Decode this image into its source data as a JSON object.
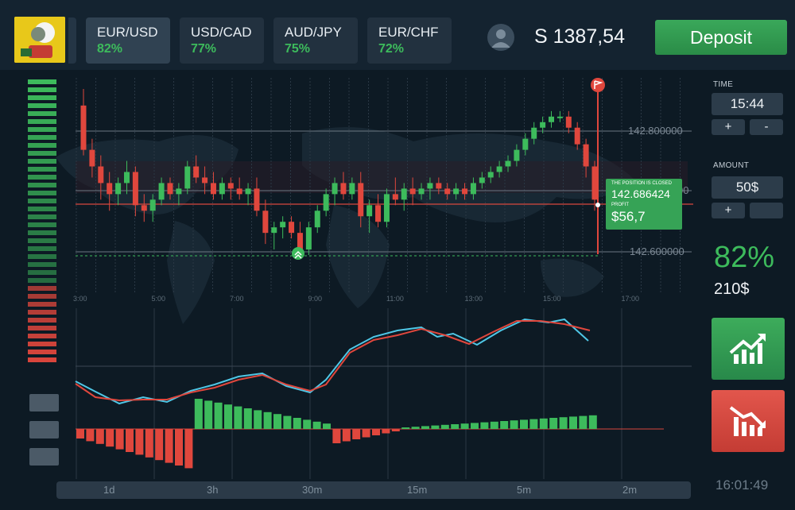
{
  "header": {
    "pairs": [
      {
        "name": "EUR/USD",
        "pct": "82%"
      },
      {
        "name": "USD/CAD",
        "pct": "77%"
      },
      {
        "name": "AUD/JPY",
        "pct": "75%"
      },
      {
        "name": "EUR/CHF",
        "pct": "72%"
      }
    ],
    "balance": "S 1387,54",
    "deposit_label": "Deposit"
  },
  "side": {
    "time_label": "TIME",
    "time_value": "15:44",
    "amount_label": "AMOUNT",
    "amount_value": "50$",
    "plus": "+",
    "minus": "-",
    "payout": "82%",
    "payout_amount": "210$"
  },
  "clock": "16:01:49",
  "timeframes": [
    "1d",
    "3h",
    "30m",
    "15m",
    "5m",
    "2m"
  ],
  "closed_box": {
    "title": "THE POSITION IS CLOSED",
    "price": "142.686424",
    "profit_label": "PROFIT",
    "profit": "$56,7"
  },
  "colors": {
    "up": "#3dbb5c",
    "down": "#e0473d",
    "bg": "#0d1a24"
  },
  "chart_data": {
    "type": "candlestick",
    "price_labels": [
      "142.800000",
      "00",
      "142.600000"
    ],
    "time_labels": [
      "3:00",
      "5:00",
      "7:00",
      "9:00",
      "11:00",
      "13:00",
      "15:00",
      "17:00"
    ],
    "candles_ohlc": [
      [
        142.83,
        142.86,
        142.74,
        142.75
      ],
      [
        142.75,
        142.77,
        142.7,
        142.72
      ],
      [
        142.72,
        142.74,
        142.66,
        142.69
      ],
      [
        142.69,
        142.71,
        142.64,
        142.67
      ],
      [
        142.67,
        142.7,
        142.65,
        142.69
      ],
      [
        142.69,
        142.73,
        142.67,
        142.71
      ],
      [
        142.71,
        142.72,
        142.63,
        142.65
      ],
      [
        142.65,
        142.67,
        142.62,
        142.64
      ],
      [
        142.64,
        142.67,
        142.62,
        142.66
      ],
      [
        142.66,
        142.7,
        142.65,
        142.69
      ],
      [
        142.69,
        142.7,
        142.66,
        142.67
      ],
      [
        142.67,
        142.69,
        142.65,
        142.68
      ],
      [
        142.68,
        142.73,
        142.67,
        142.72
      ],
      [
        142.72,
        142.74,
        142.69,
        142.7
      ],
      [
        142.7,
        142.72,
        142.67,
        142.69
      ],
      [
        142.69,
        142.71,
        142.66,
        142.67
      ],
      [
        142.67,
        142.7,
        142.66,
        142.69
      ],
      [
        142.69,
        142.7,
        142.66,
        142.68
      ],
      [
        142.68,
        142.7,
        142.66,
        142.67
      ],
      [
        142.67,
        142.69,
        142.65,
        142.68
      ],
      [
        142.68,
        142.7,
        142.63,
        142.64
      ],
      [
        142.64,
        142.66,
        142.58,
        142.6
      ],
      [
        142.6,
        142.62,
        142.57,
        142.61
      ],
      [
        142.61,
        142.63,
        142.59,
        142.62
      ],
      [
        142.62,
        142.63,
        142.59,
        142.6
      ],
      [
        142.6,
        142.62,
        142.56,
        142.57
      ],
      [
        142.57,
        142.62,
        142.56,
        142.61
      ],
      [
        142.61,
        142.65,
        142.6,
        142.64
      ],
      [
        142.64,
        142.68,
        142.63,
        142.67
      ],
      [
        142.67,
        142.7,
        142.65,
        142.69
      ],
      [
        142.69,
        142.71,
        142.66,
        142.67
      ],
      [
        142.67,
        142.7,
        142.66,
        142.69
      ],
      [
        142.69,
        142.71,
        142.61,
        142.63
      ],
      [
        142.63,
        142.66,
        142.6,
        142.65
      ],
      [
        142.65,
        142.67,
        142.61,
        142.62
      ],
      [
        142.62,
        142.68,
        142.61,
        142.67
      ],
      [
        142.67,
        142.7,
        142.65,
        142.66
      ],
      [
        142.66,
        142.69,
        142.64,
        142.68
      ],
      [
        142.68,
        142.7,
        142.65,
        142.67
      ],
      [
        142.67,
        142.69,
        142.66,
        142.68
      ],
      [
        142.68,
        142.7,
        142.66,
        142.69
      ],
      [
        142.69,
        142.7,
        142.67,
        142.68
      ],
      [
        142.68,
        142.69,
        142.66,
        142.67
      ],
      [
        142.67,
        142.69,
        142.66,
        142.68
      ],
      [
        142.68,
        142.69,
        142.66,
        142.67
      ],
      [
        142.67,
        142.7,
        142.66,
        142.69
      ],
      [
        142.69,
        142.71,
        142.68,
        142.7
      ],
      [
        142.7,
        142.72,
        142.69,
        142.71
      ],
      [
        142.71,
        142.73,
        142.7,
        142.72
      ],
      [
        142.72,
        142.74,
        142.71,
        142.73
      ],
      [
        142.73,
        142.76,
        142.72,
        142.75
      ],
      [
        142.75,
        142.78,
        142.74,
        142.77
      ],
      [
        142.77,
        142.8,
        142.76,
        142.79
      ],
      [
        142.79,
        142.81,
        142.78,
        142.8
      ],
      [
        142.8,
        142.82,
        142.79,
        142.81
      ],
      [
        142.81,
        142.82,
        142.8,
        142.81
      ],
      [
        142.81,
        142.82,
        142.78,
        142.79
      ],
      [
        142.79,
        142.8,
        142.75,
        142.76
      ],
      [
        142.76,
        142.77,
        142.7,
        142.72
      ],
      [
        142.72,
        142.73,
        142.64,
        142.66
      ]
    ]
  }
}
